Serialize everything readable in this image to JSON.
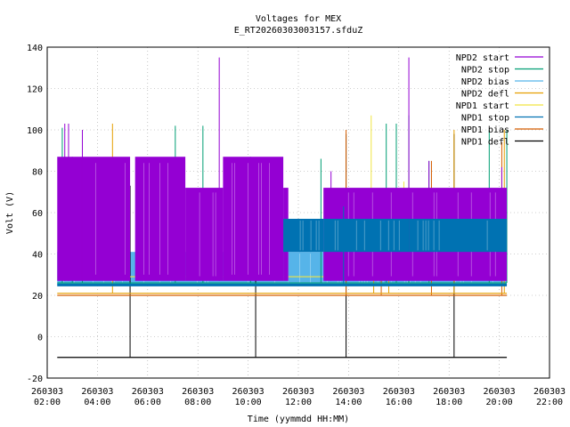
{
  "chart_data": {
    "type": "line",
    "title": "Voltages for MEX",
    "subtitle": "E_RT20260303003157.sfduZ",
    "xlabel": "Time (yymmdd HH:MM)",
    "ylabel": "Volt (V)",
    "xlim_hours": [
      2,
      22
    ],
    "ylim": [
      -20,
      140
    ],
    "x_ticks": [
      {
        "h": 2,
        "date": "260303",
        "time": "02:00"
      },
      {
        "h": 4,
        "date": "260303",
        "time": "04:00"
      },
      {
        "h": 6,
        "date": "260303",
        "time": "06:00"
      },
      {
        "h": 8,
        "date": "260303",
        "time": "08:00"
      },
      {
        "h": 10,
        "date": "260303",
        "time": "10:00"
      },
      {
        "h": 12,
        "date": "260303",
        "time": "12:00"
      },
      {
        "h": 14,
        "date": "260303",
        "time": "14:00"
      },
      {
        "h": 16,
        "date": "260303",
        "time": "16:00"
      },
      {
        "h": 18,
        "date": "260303",
        "time": "18:00"
      },
      {
        "h": 20,
        "date": "260303",
        "time": "20:00"
      },
      {
        "h": 22,
        "date": "260303",
        "time": "22:00"
      }
    ],
    "y_ticks": [
      -20,
      0,
      20,
      40,
      60,
      80,
      100,
      120,
      140
    ],
    "grid": true,
    "legend_position": "top-right",
    "series": [
      {
        "name": "NPD2 start",
        "color": "#9400d3",
        "blocks": [
          [
            2.4,
            5.3,
            27,
            87
          ],
          [
            5.5,
            7.5,
            27,
            87
          ],
          [
            7.5,
            9.0,
            27,
            72
          ],
          [
            9.0,
            11.4,
            27,
            87
          ],
          [
            11.4,
            11.6,
            27,
            72
          ],
          [
            13.0,
            20.3,
            27,
            72
          ]
        ],
        "spikes": [
          [
            2.7,
            103
          ],
          [
            2.85,
            103
          ],
          [
            3.4,
            100
          ],
          [
            8.85,
            135
          ],
          [
            16.4,
            135
          ],
          [
            13.3,
            80
          ],
          [
            17.2,
            85
          ],
          [
            20.1,
            82
          ]
        ]
      },
      {
        "name": "NPD2 stop",
        "color": "#009e73",
        "base": 26,
        "spikes": [
          [
            2.6,
            101
          ],
          [
            3.0,
            87
          ],
          [
            3.4,
            87
          ],
          [
            7.1,
            102
          ],
          [
            8.2,
            102
          ],
          [
            10.1,
            87
          ],
          [
            12.9,
            86
          ],
          [
            15.5,
            103
          ],
          [
            15.9,
            103
          ],
          [
            16.4,
            107
          ],
          [
            17.2,
            85
          ],
          [
            19.6,
            100
          ],
          [
            20.3,
            100
          ]
        ]
      },
      {
        "name": "NPD2 bias",
        "color": "#56b4e9",
        "blocks": [
          [
            2.4,
            11.6,
            25,
            41
          ],
          [
            11.6,
            13.0,
            25,
            41
          ],
          [
            13.0,
            20.3,
            25,
            41
          ]
        ]
      },
      {
        "name": "NPD2 defl",
        "color": "#e69f00",
        "base": 21,
        "spikes": [
          [
            4.6,
            103
          ],
          [
            15.0,
            60
          ],
          [
            15.6,
            60
          ],
          [
            18.2,
            100
          ],
          [
            20.2,
            100
          ]
        ]
      },
      {
        "name": "NPD1 start",
        "color": "#f0e442",
        "base": 29,
        "spikes": [
          [
            14.9,
            107
          ],
          [
            16.2,
            75
          ]
        ]
      },
      {
        "name": "NPD1 stop",
        "color": "#0072b2",
        "base": 25,
        "blocks": [
          [
            11.4,
            13.0,
            41,
            57
          ],
          [
            13.0,
            16.4,
            41,
            57
          ],
          [
            16.4,
            20.3,
            41,
            57
          ]
        ],
        "spikes": [
          [
            13.8,
            63
          ]
        ]
      },
      {
        "name": "NPD1 bias",
        "color": "#d55e00",
        "base": 20,
        "spikes": [
          [
            13.9,
            100
          ],
          [
            15.3,
            67
          ],
          [
            17.3,
            85
          ],
          [
            20.1,
            94
          ]
        ]
      },
      {
        "name": "NPD1 defl",
        "color": "#000000",
        "base": -10,
        "spikes": [
          [
            5.3,
            73
          ],
          [
            10.3,
            73
          ],
          [
            13.9,
            98
          ],
          [
            18.2,
            98
          ]
        ]
      }
    ]
  }
}
